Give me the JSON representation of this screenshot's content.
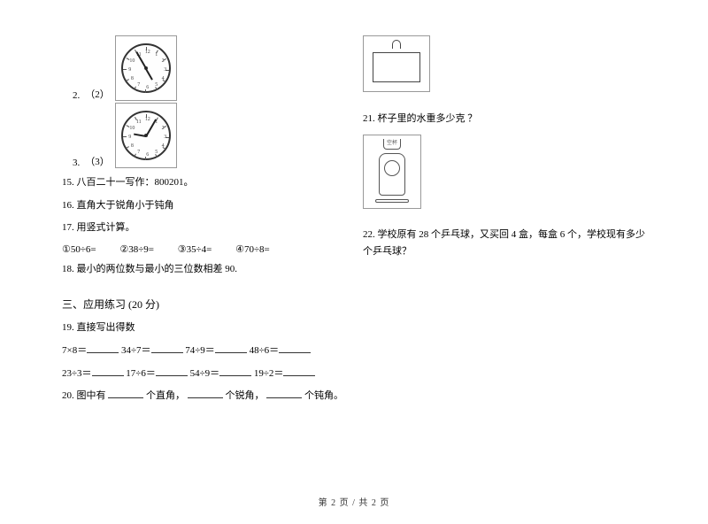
{
  "q14": {
    "label2_prefix": "2.",
    "label2": "（2）",
    "label3_prefix": "3.",
    "label3": "（3）",
    "clock2": {
      "hour_angle": 150,
      "minute_angle": 330
    },
    "clock3": {
      "hour_angle": 280,
      "minute_angle": 30
    }
  },
  "q15": "15.  八百二十一写作：800201。",
  "q16": "16.  直角大于锐角小于钝角",
  "q17": {
    "title": "17.  用竖式计算。",
    "a": "①50÷6=",
    "b": "②38÷9=",
    "c": "③35÷4=",
    "d": "④70÷8="
  },
  "q18": "18.  最小的两位数与最小的三位数相差  90.",
  "section3": "三、应用练习  (20 分)",
  "q19": {
    "title": "19.  直接写出得数",
    "l1a": "7×8＝",
    "l1b": "34÷7＝",
    "l1c": "74÷9＝",
    "l1d": "48÷6＝",
    "l2a": "23÷3＝",
    "l2b": "17÷6＝",
    "l2c": "54÷9＝",
    "l2d": "19÷2＝"
  },
  "q20": {
    "p1": "20.  图中有",
    "p2": "个直角，",
    "p3": "个锐角，",
    "p4": "个钝角。"
  },
  "q21": "21.  杯子里的水重多少克 ？",
  "q22": "22.  学校原有 28 个乒乓球，又买回 4 盒，每盒 6 个，学校现有多少个乒乓球？",
  "footer": "第 2 页    /   共 2 页",
  "clock_numbers": [
    "12",
    "1",
    "2",
    "3",
    "4",
    "5",
    "6",
    "7",
    "8",
    "9",
    "10",
    "11"
  ]
}
